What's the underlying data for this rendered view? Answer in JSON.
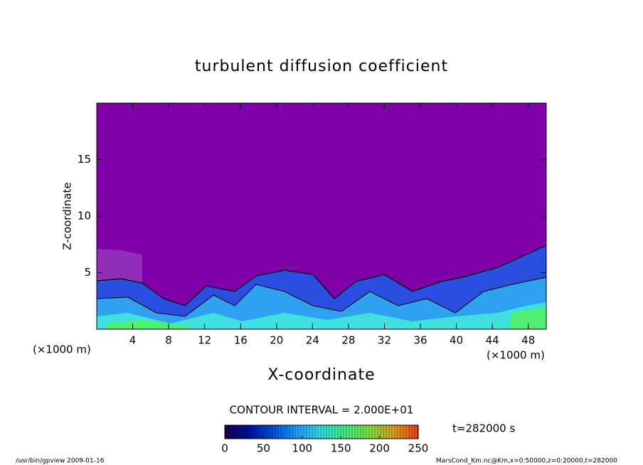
{
  "chart_data": {
    "type": "contour",
    "title": "turbulent diffusion coefficient",
    "xlabel": "X-coordinate",
    "ylabel": "Z-coordinate",
    "xunit": "(×1000 m)",
    "xlim": [
      0,
      50
    ],
    "xticks": [
      4,
      8,
      12,
      16,
      20,
      24,
      28,
      32,
      36,
      40,
      44,
      48
    ],
    "ylim": [
      0,
      20
    ],
    "yticks": [
      5,
      10,
      15
    ],
    "background_color": "#7f00a8",
    "contour_interval_label": "CONTOUR INTERVAL = 2.000E+01",
    "time_label": "t=282000 s",
    "colorbar": {
      "lim": [
        0,
        250
      ],
      "ticks": [
        0,
        50,
        100,
        150,
        200,
        250
      ],
      "colors": [
        "#1a0050",
        "#0010a0",
        "#0050e0",
        "#20a0ff",
        "#30e0e0",
        "#40f080",
        "#80e040",
        "#e0a020",
        "#f04010"
      ]
    },
    "footer_left": "/usr/bin/gpview  2009-01-16",
    "footer_right": "MarsCond_Km.nc@Km,x=0:50000,z=0:20000,t=282000"
  }
}
